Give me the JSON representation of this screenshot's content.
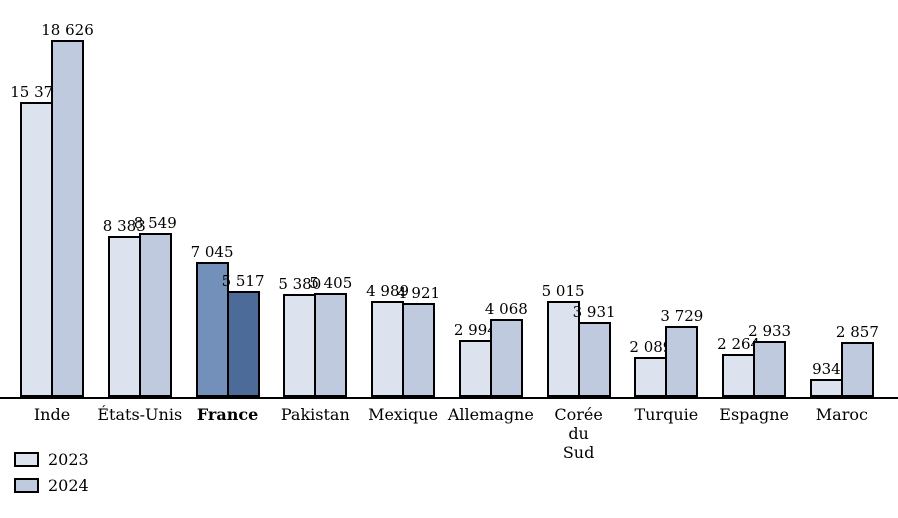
{
  "page": {
    "background_color": "#ffffff"
  },
  "legend": {
    "position": "bottom-left",
    "items": [
      {
        "label": "2023"
      },
      {
        "label": "2024"
      }
    ]
  },
  "chart_data": {
    "type": "bar",
    "title": "",
    "xlabel": "",
    "ylabel": "",
    "ylim": [
      0,
      18626
    ],
    "grid": false,
    "axis_visible": "x-baseline-only",
    "legend_position": "bottom-left",
    "value_label_format": "space thousands separator",
    "categories": [
      {
        "label": "Inde"
      },
      {
        "label": "États-Unis"
      },
      {
        "label": "France",
        "bold": true,
        "highlight": true
      },
      {
        "label": "Pakistan"
      },
      {
        "label": "Mexique"
      },
      {
        "label": "Allemagne"
      },
      {
        "label": "Corée du Sud",
        "wrap": true
      },
      {
        "label": "Turquie"
      },
      {
        "label": "Espagne"
      },
      {
        "label": "Maroc"
      }
    ],
    "series": [
      {
        "name": "2023",
        "values": [
          15373,
          8383,
          7045,
          5380,
          4989,
          2994,
          5015,
          2089,
          2264,
          934
        ],
        "labels": [
          "15 373",
          "8 383",
          "7 045",
          "5 380",
          "4 989",
          "2 994",
          "5 015",
          "2 089",
          "2 264",
          "934"
        ]
      },
      {
        "name": "2024",
        "values": [
          18626,
          8549,
          5517,
          5405,
          4921,
          4068,
          3931,
          3729,
          2933,
          2857
        ],
        "labels": [
          "18 626",
          "8 549",
          "5 517",
          "5 405",
          "4 921",
          "4 068",
          "3 931",
          "3 729",
          "2 933",
          "2 857"
        ]
      }
    ],
    "colors": {
      "2023": "#dce3ef",
      "2024": "#bfcade",
      "highlight_2023": "#7390ba",
      "highlight_2024": "#4c6b99",
      "bar_border": "#000000",
      "axis_line": "#000000"
    }
  }
}
